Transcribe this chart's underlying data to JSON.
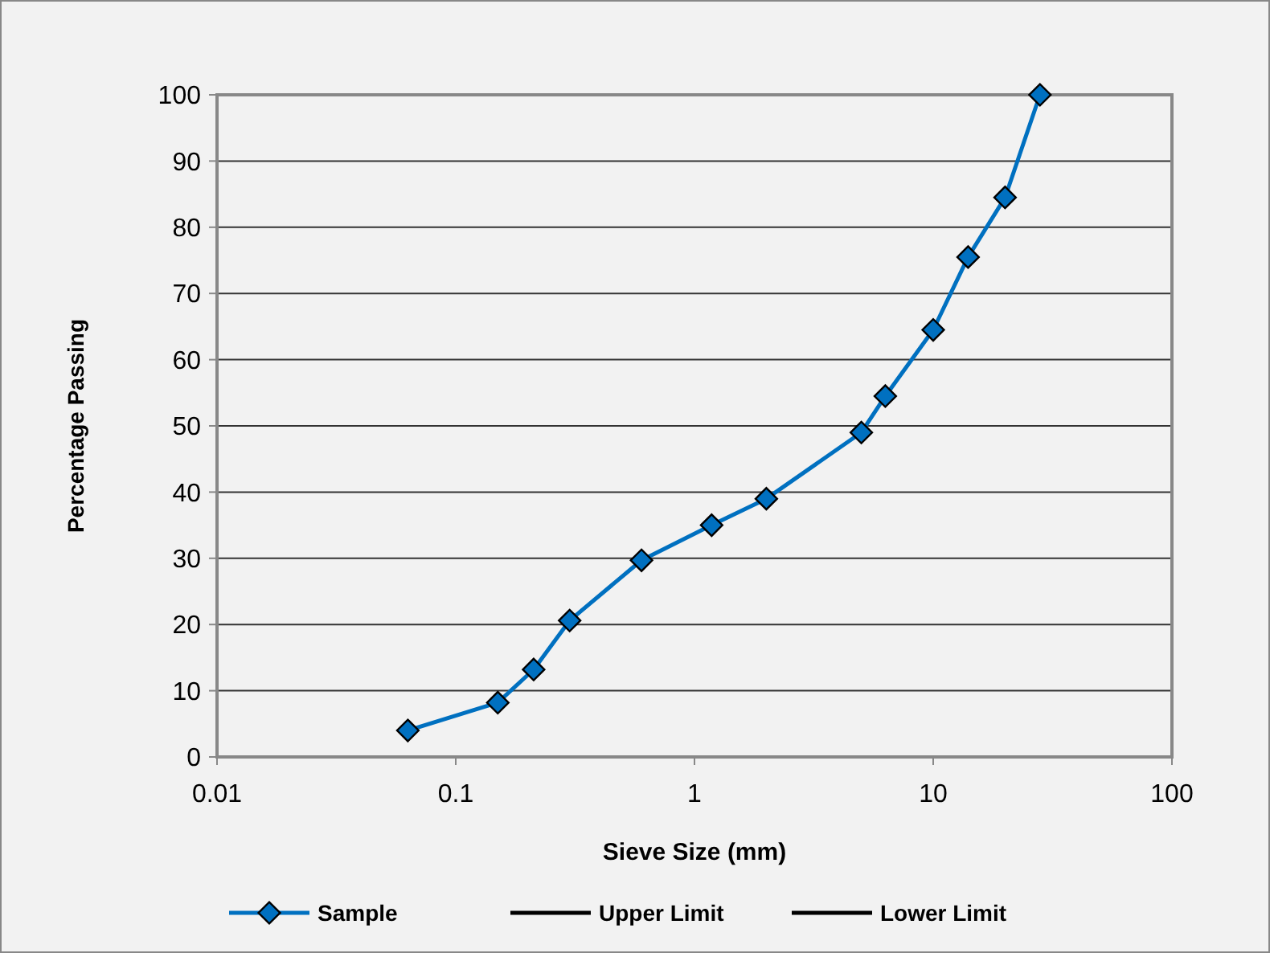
{
  "chart_data": {
    "type": "line",
    "xlabel": "Sieve Size (mm)",
    "ylabel": "Percentage Passing",
    "x": [
      0.063,
      0.15,
      0.212,
      0.3,
      0.6,
      1.18,
      2,
      5,
      6.3,
      10,
      14,
      20,
      28
    ],
    "series": [
      {
        "name": "Sample",
        "color": "#0070c0",
        "values": [
          4,
          8.2,
          13.2,
          20.6,
          29.7,
          35,
          39,
          49,
          54.5,
          64.5,
          75.5,
          84.5,
          100
        ]
      },
      {
        "name": "Upper Limit",
        "color": "#000000",
        "values": [
          null,
          null,
          null,
          null,
          null,
          null,
          null,
          null,
          null,
          null,
          null,
          null,
          null
        ]
      },
      {
        "name": "Lower Limit",
        "color": "#000000",
        "values": [
          null,
          null,
          null,
          null,
          null,
          null,
          null,
          null,
          null,
          null,
          null,
          null,
          null
        ]
      }
    ],
    "log": "x",
    "xlim": [
      0.01,
      100
    ],
    "xticks": [
      0.01,
      0.1,
      1,
      10,
      100
    ],
    "ylim": [
      0,
      100
    ],
    "yticks": [
      0,
      10,
      20,
      30,
      40,
      50,
      60,
      70,
      80,
      90,
      100
    ],
    "grid": "y",
    "legend": "bottom",
    "marker": "diamond",
    "line_style": "solid"
  }
}
